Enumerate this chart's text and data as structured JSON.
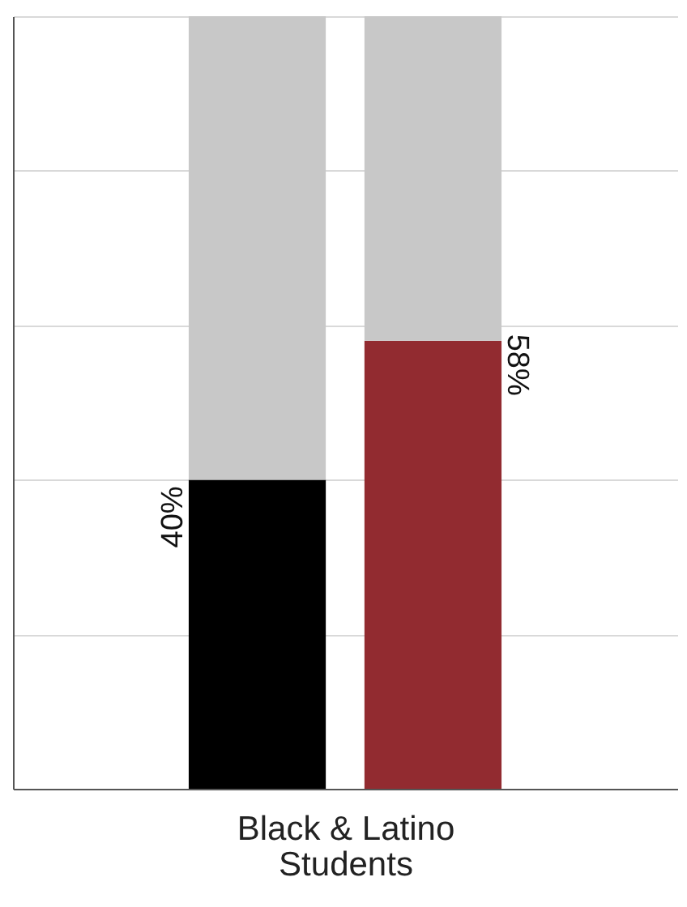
{
  "chart_data": {
    "type": "bar",
    "stacked": true,
    "categories": [
      null,
      null
    ],
    "xlabel": "Black & Latino Students",
    "ylim": [
      0,
      100
    ],
    "yticks": [
      {
        "value": 0,
        "label": null
      },
      {
        "value": 20,
        "label": null
      },
      {
        "value": 40,
        "label": null
      },
      {
        "value": 60,
        "label": null
      },
      {
        "value": 80,
        "label": null
      },
      {
        "value": 100,
        "label": null
      }
    ],
    "grid": "y",
    "series": [
      {
        "colors": [
          "#000000",
          "#922b30"
        ],
        "values": [
          40,
          58
        ],
        "value_labels": [
          "40%",
          "58%"
        ]
      },
      {
        "color": "#c8c8c8",
        "values": [
          60,
          42
        ]
      }
    ]
  }
}
